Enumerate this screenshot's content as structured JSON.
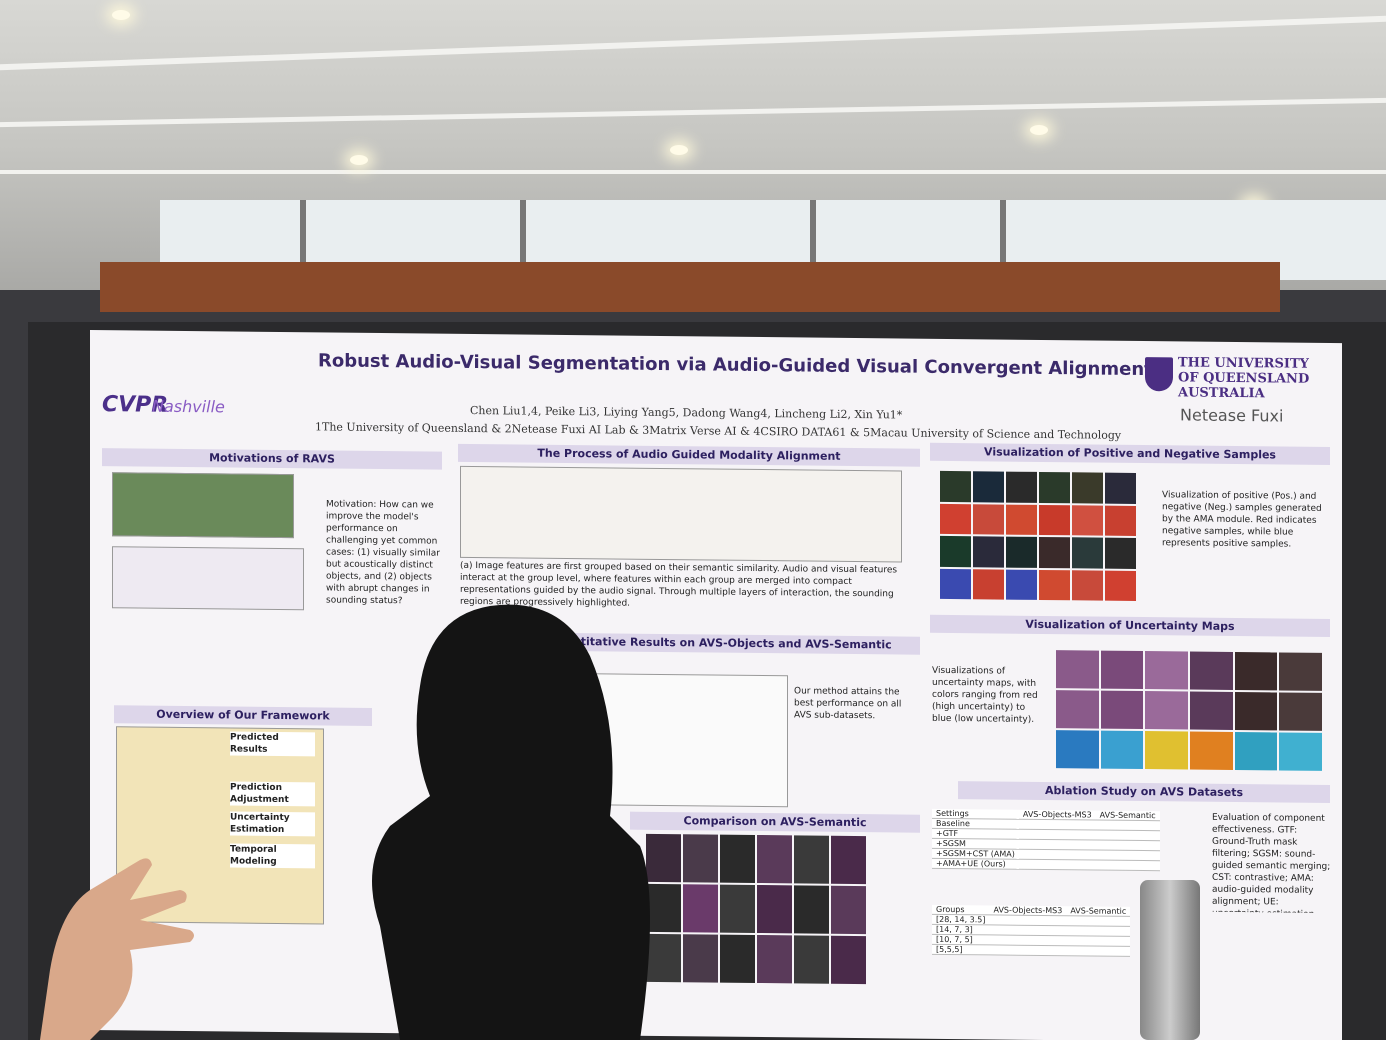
{
  "poster": {
    "title": "Robust Audio-Visual Segmentation via Audio-Guided Visual Convergent Alignment",
    "authors": "Chen Liu1,4, Peike Li3, Liying Yang5, Dadong Wang4, Lincheng Li2, Xin Yu1*",
    "affiliations": "1The University of Queensland & 2Netease Fuxi AI Lab & 3Matrix Verse AI & 4CSIRO DATA61 & 5Macau University of Science and Technology",
    "cvpr_logo": "CVPR",
    "cvpr_logo_sub": "Nashville",
    "uq_logo": "THE UNIVERSITY\nOF QUEENSLAND\nAUSTRALIA",
    "fuxi_logo": "Netease Fuxi",
    "sections": {
      "motivations": "Motivations of RAVS",
      "motivation_text": "Motivation: How can we improve the model's performance on challenging yet common cases: (1) visually similar but acoustically distinct objects, and (2) objects with abrupt changes in sounding status?",
      "overview": "Overview of Our Framework",
      "process": "The Process of Audio Guided Modality Alignment",
      "process_text": "(a) Image features are first grouped based on their semantic similarity. Audio and visual features interact at the group level, where features within each group are merged into compact representations guided by the audio signal. Through multiple layers of interaction, the sounding regions are progressively highlighted.",
      "quant": "Quantitative Results on AVS-Objects and AVS-Semantic",
      "quant_note": "Our method attains the best performance on all AVS sub-datasets.",
      "comparison": "Comparison on AVS-Semantic",
      "pos_neg": "Visualization of Positive and Negative Samples",
      "pos_neg_text": "Visualization of positive (Pos.) and negative (Neg.) samples generated by the AMA module. Red indicates negative samples, while blue represents positive samples.",
      "uncertainty": "Visualization of Uncertainty Maps",
      "uncertainty_text": "Visualizations of uncertainty maps, with colors ranging from red (high uncertainty) to blue (low uncertainty).",
      "ablation": "Ablation Study on AVS Datasets",
      "ablation_text": "Evaluation of component effectiveness. GTF: Ground-Truth mask filtering; SGSM: sound-guided semantic merging; CST: contrastive; AMA: audio-guided modality alignment; UE: uncertainty estimation.",
      "ablation_rows": [
        "Baseline",
        "+GTF",
        "+SGSM",
        "+SGSM+CST (AMA)",
        "+AMA+UE (Ours)"
      ],
      "ablation_head": [
        "Settings",
        "AVS-Objects-MS3",
        "AVS-Semantic"
      ],
      "group_rows": [
        "[28, 14, 3.5]",
        "[14, 7, 3]",
        "[10, 7, 5]",
        "[5,5,5]"
      ],
      "group_head": [
        "Groups",
        "AVS-Objects-MS3",
        "AVS-Semantic"
      ],
      "framework_boxes": [
        "Predicted Results",
        "Prediction Adjustment",
        "Uncertainty Estimation",
        "Temporal Modeling"
      ]
    }
  }
}
